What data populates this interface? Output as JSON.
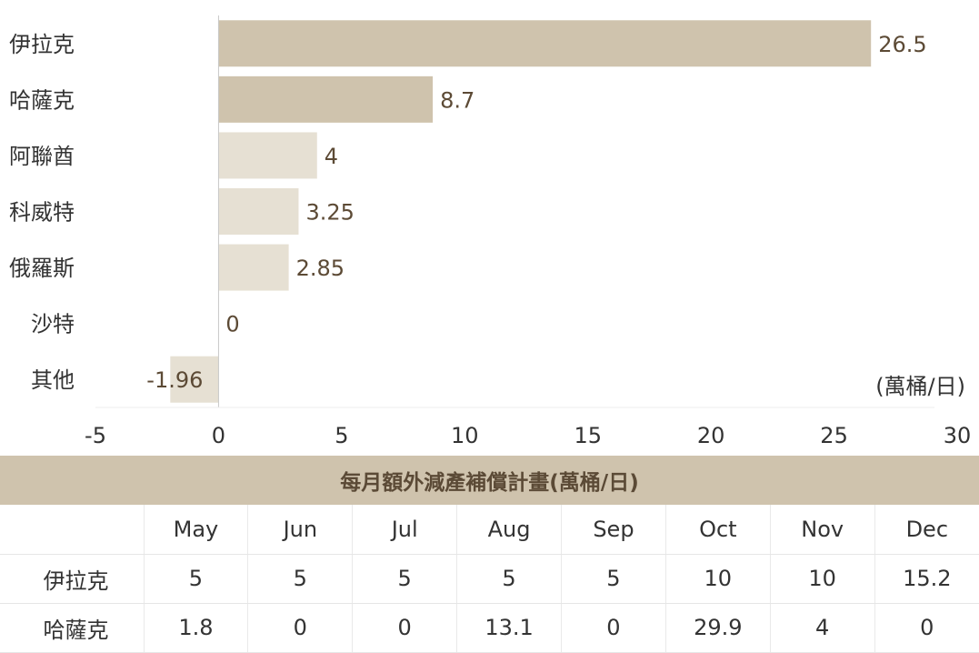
{
  "chart_data": {
    "type": "bar",
    "orientation": "horizontal",
    "categories": [
      "伊拉克",
      "哈薩克",
      "阿聯酋",
      "科威特",
      "俄羅斯",
      "沙特",
      "其他"
    ],
    "values": [
      26.5,
      8.7,
      4,
      3.25,
      2.85,
      0,
      -1.96
    ],
    "value_labels": [
      "26.5",
      "8.7",
      "4",
      "3.25",
      "2.85",
      "0",
      "-1.96"
    ],
    "unit_label": "(萬桶/日)",
    "xlim": [
      -5,
      30
    ],
    "xticks": [
      "-5",
      "0",
      "5",
      "10",
      "15",
      "20",
      "25",
      "30"
    ],
    "grid": false,
    "colors": {
      "highlight": "#cfc3ad",
      "normal": "#e6e0d3",
      "label": "#5c4a35"
    },
    "highlighted_categories": [
      "伊拉克",
      "哈薩克"
    ]
  },
  "table": {
    "title": "每月額外減產補償計畫(萬桶/日)",
    "months": [
      "May",
      "Jun",
      "Jul",
      "Aug",
      "Sep",
      "Oct",
      "Nov",
      "Dec"
    ],
    "rows": [
      {
        "label": "伊拉克",
        "values": [
          "5",
          "5",
          "5",
          "5",
          "5",
          "10",
          "10",
          "15.2"
        ]
      },
      {
        "label": "哈薩克",
        "values": [
          "1.8",
          "0",
          "0",
          "13.1",
          "0",
          "29.9",
          "4",
          "0"
        ]
      }
    ]
  }
}
